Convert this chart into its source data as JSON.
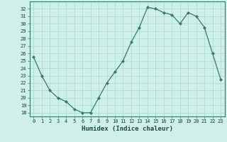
{
  "x": [
    0,
    1,
    2,
    3,
    4,
    5,
    6,
    7,
    8,
    9,
    10,
    11,
    12,
    13,
    14,
    15,
    16,
    17,
    18,
    19,
    20,
    21,
    22,
    23
  ],
  "y": [
    25.5,
    23.0,
    21.0,
    20.0,
    19.5,
    18.5,
    18.0,
    18.0,
    20.0,
    22.0,
    23.5,
    25.0,
    27.5,
    29.5,
    32.2,
    32.0,
    31.5,
    31.2,
    30.0,
    31.5,
    31.0,
    29.5,
    26.0,
    22.5
  ],
  "xlabel": "Humidex (Indice chaleur)",
  "line_color": "#2e7d6e",
  "marker_color": "#2e7d6e",
  "bg_color": "#cef0e8",
  "grid_color": "#a8d8cc",
  "ylim": [
    17.5,
    33.0
  ],
  "xlim": [
    -0.5,
    23.5
  ],
  "yticks": [
    18,
    19,
    20,
    21,
    22,
    23,
    24,
    25,
    26,
    27,
    28,
    29,
    30,
    31,
    32
  ],
  "xticks": [
    0,
    1,
    2,
    3,
    4,
    5,
    6,
    7,
    8,
    9,
    10,
    11,
    12,
    13,
    14,
    15,
    16,
    17,
    18,
    19,
    20,
    21,
    22,
    23
  ],
  "tick_fontsize": 5.0,
  "xlabel_fontsize": 6.5
}
